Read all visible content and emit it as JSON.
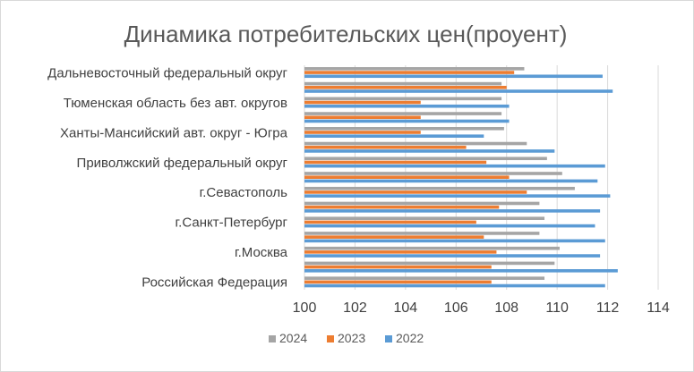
{
  "chart_data": {
    "type": "bar",
    "orientation": "horizontal",
    "title": "Динамика потребительских цен(проуент)",
    "xlim": [
      100,
      114
    ],
    "x_ticks": [
      "100",
      "102",
      "104",
      "106",
      "108",
      "110",
      "112",
      "114"
    ],
    "grid": true,
    "legend_position": "bottom",
    "categories": [
      "Российская Федерация",
      "",
      "г.Москва",
      "",
      "г.Санкт-Петербург",
      "",
      "г.Севастополь",
      "",
      "Приволжский федеральный округ",
      "",
      "Ханты-Мансийский  авт. округ - Югра",
      "",
      "Тюменская область без авт. округов",
      "",
      "Дальневосточный федеральный округ"
    ],
    "series": [
      {
        "name": "2024",
        "color": "#a5a5a5",
        "values": [
          109.5,
          109.9,
          110.1,
          109.3,
          109.5,
          109.3,
          110.7,
          110.2,
          109.6,
          108.8,
          107.9,
          107.8,
          107.8,
          107.8,
          108.7
        ]
      },
      {
        "name": "2023",
        "color": "#ed7d31",
        "values": [
          107.4,
          107.4,
          107.6,
          107.1,
          106.8,
          107.7,
          108.8,
          108.1,
          107.2,
          106.4,
          104.6,
          104.6,
          104.6,
          108.0,
          108.3
        ]
      },
      {
        "name": "2022",
        "color": "#5b9bd5",
        "values": [
          111.9,
          112.4,
          111.7,
          111.9,
          111.5,
          111.7,
          112.1,
          111.6,
          111.9,
          109.9,
          107.1,
          108.1,
          108.1,
          112.2,
          111.8
        ]
      }
    ]
  }
}
